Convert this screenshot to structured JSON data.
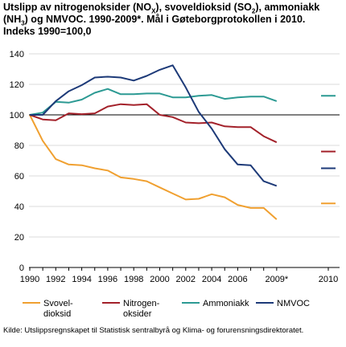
{
  "title_parts": {
    "p1": "Utslipp av nitrogenoksider (NO",
    "s1": "X",
    "p2": "), svoveldioksid (SO",
    "s2": "2",
    "p3": "), ammoniakk",
    "p4": "(NH",
    "s3": "3",
    "p5": ") og NMVOC. 1990-2009*. Mål i Gøteborgprotokollen i 2010.",
    "p6": "Indeks 1990=100,0"
  },
  "source": "Kilde: Utslippsregnskapet til Statistisk sentralbyrå og Klima- og forurensningsdirektoratet.",
  "chart_data": {
    "type": "line",
    "x": [
      1990,
      1991,
      1992,
      1993,
      1994,
      1995,
      1996,
      1997,
      1998,
      1999,
      2000,
      2001,
      2002,
      2003,
      2004,
      2005,
      2006,
      2007,
      2008,
      2009
    ],
    "x_tick_labels": [
      "1990",
      "1992",
      "1994",
      "1996",
      "1998",
      "2000",
      "2002",
      "2004",
      "2006",
      "2009*",
      "2010"
    ],
    "y_ticks": [
      0,
      20,
      40,
      60,
      80,
      100,
      120,
      140
    ],
    "ylim": [
      0,
      140
    ],
    "reference_line": 100,
    "grid": "horizontal",
    "legend_position": "bottom",
    "series": [
      {
        "name": "Svovel-\ndioksid",
        "color": "#f0a030",
        "values": [
          100,
          83,
          71,
          67.5,
          67,
          65,
          63.5,
          59,
          58,
          56.5,
          52.5,
          48.5,
          44.5,
          45,
          48,
          46,
          41,
          39,
          39,
          31.5
        ],
        "target_2010": 42
      },
      {
        "name": "Nitrogen-\noksider",
        "color": "#a3212a",
        "values": [
          100,
          97,
          96.5,
          101,
          100.5,
          101,
          105.5,
          107,
          106.5,
          107,
          100,
          98.5,
          95,
          94.5,
          95,
          92.5,
          92,
          92,
          86,
          82
        ],
        "target_2010": 76
      },
      {
        "name": "Ammoniakk",
        "color": "#2c9a93",
        "values": [
          100,
          101.5,
          108.5,
          108,
          110,
          114.5,
          117,
          113.5,
          113.5,
          114,
          114,
          111.5,
          111.5,
          112.5,
          113,
          110.5,
          111.5,
          112,
          112,
          109
        ],
        "target_2010": 112.5
      },
      {
        "name": "NMVOC",
        "color": "#1d3a78",
        "values": [
          100,
          100,
          109,
          115.5,
          119.5,
          124.5,
          125,
          124.5,
          122.5,
          125.5,
          129.5,
          132.5,
          118,
          102,
          91,
          77.5,
          67.5,
          67,
          56.5,
          53.5
        ],
        "target_2010": 65
      }
    ]
  }
}
